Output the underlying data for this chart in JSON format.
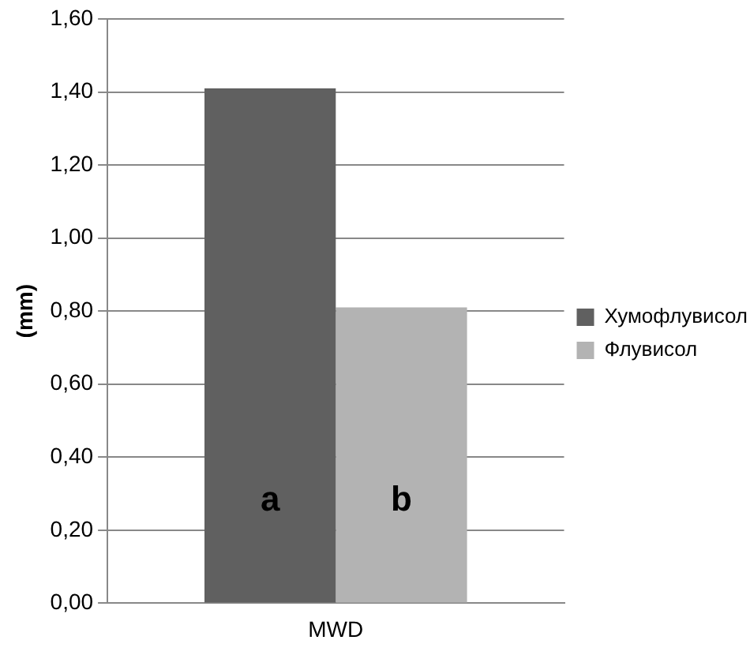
{
  "chart_data": {
    "type": "bar",
    "ylabel": "(mm)",
    "categories": [
      "MWD"
    ],
    "series": [
      {
        "name": "Хумофлувисол",
        "color": "#606060",
        "values": [
          1.41
        ]
      },
      {
        "name": "Флувисол",
        "color": "#b3b3b3",
        "values": [
          0.81
        ]
      }
    ],
    "ylim": [
      0,
      1.6
    ],
    "yticks": [
      {
        "value": 0,
        "label": "0,00"
      },
      {
        "value": 0.2,
        "label": "0,20"
      },
      {
        "value": 0.4,
        "label": "0,40"
      },
      {
        "value": 0.6,
        "label": "0,60"
      },
      {
        "value": 0.8,
        "label": "0,80"
      },
      {
        "value": 1.0,
        "label": "1,00"
      },
      {
        "value": 1.2,
        "label": "1,20"
      },
      {
        "value": 1.4,
        "label": "1,40"
      },
      {
        "value": 1.6,
        "label": "1,60"
      }
    ],
    "grid": "y",
    "legend": "right",
    "annotations": [
      "a",
      "b"
    ]
  }
}
